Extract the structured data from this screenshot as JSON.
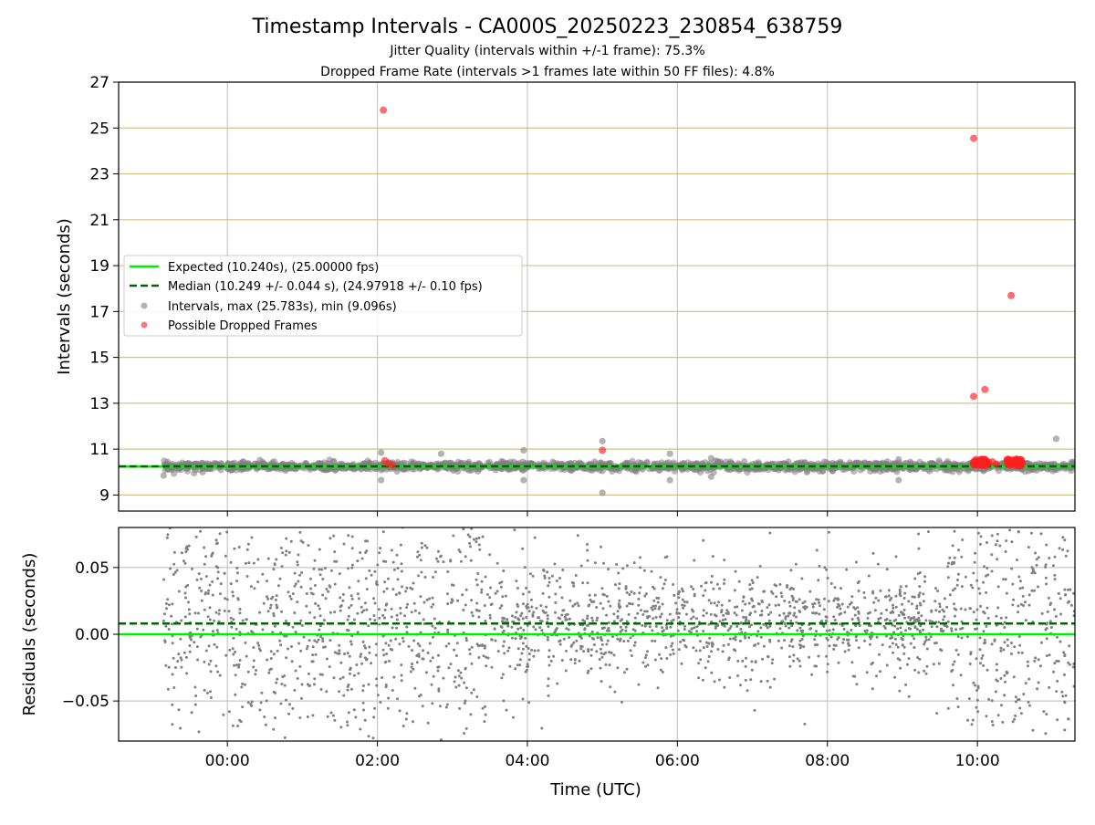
{
  "chart_data": [
    {
      "type": "scatter",
      "title": "Timestamp Intervals - CA000S_20250223_230854_638759",
      "subtitle_lines": [
        "Jitter Quality (intervals within +/-1 frame): 75.3%",
        "Dropped Frame Rate (intervals >1 frames late within 50 FF files): 4.8%"
      ],
      "xlabel": "",
      "ylabel": "Intervals (seconds)",
      "xlim_hours": [
        -1.45,
        11.3
      ],
      "ylim": [
        8.3,
        27
      ],
      "yticks": [
        9,
        11,
        13,
        15,
        17,
        19,
        21,
        23,
        25,
        27
      ],
      "grid": true,
      "legend_position": "center-left",
      "legend": [
        "Expected (10.240s), (25.00000 fps)",
        "Median (10.249 +/- 0.044 s), (24.97918 +/- 0.10 fps)",
        "Intervals, max (25.783s), min (9.096s)",
        "Possible Dropped Frames"
      ],
      "expected": 10.24,
      "median": 10.249,
      "colors": {
        "expected": "#00ee00",
        "median": "#006400",
        "intervals": "#808080",
        "dropped": "#ff2020",
        "hgrid": "#d2c28a",
        "vgrid": "#c8c8c8"
      },
      "dropped_points": [
        {
          "x_hours": 2.08,
          "y": 25.78
        },
        {
          "x_hours": 9.95,
          "y": 24.55
        },
        {
          "x_hours": 10.45,
          "y": 17.7
        },
        {
          "x_hours": 10.1,
          "y": 13.6
        },
        {
          "x_hours": 9.95,
          "y": 13.3
        },
        {
          "x_hours": 5.0,
          "y": 10.95
        },
        {
          "x_hours": 2.1,
          "y": 10.5
        },
        {
          "x_hours": 2.15,
          "y": 10.35
        },
        {
          "x_hours": 2.2,
          "y": 10.3
        },
        {
          "x_hours": 9.98,
          "y": 10.55
        },
        {
          "x_hours": 10.05,
          "y": 10.45
        },
        {
          "x_hours": 10.12,
          "y": 10.4
        },
        {
          "x_hours": 10.2,
          "y": 10.45
        },
        {
          "x_hours": 10.25,
          "y": 10.35
        },
        {
          "x_hours": 10.5,
          "y": 10.4
        },
        {
          "x_hours": 10.55,
          "y": 10.5
        },
        {
          "x_hours": 10.6,
          "y": 10.4
        }
      ],
      "interval_outliers": [
        {
          "x_hours": 2.05,
          "y": 10.85
        },
        {
          "x_hours": 2.05,
          "y": 9.65
        },
        {
          "x_hours": 2.85,
          "y": 10.8
        },
        {
          "x_hours": 3.95,
          "y": 10.95
        },
        {
          "x_hours": 3.95,
          "y": 9.65
        },
        {
          "x_hours": 5.0,
          "y": 11.35
        },
        {
          "x_hours": 5.0,
          "y": 9.1
        },
        {
          "x_hours": 5.9,
          "y": 10.8
        },
        {
          "x_hours": 5.9,
          "y": 9.65
        },
        {
          "x_hours": 6.45,
          "y": 10.6
        },
        {
          "x_hours": 6.45,
          "y": 9.8
        },
        {
          "x_hours": 8.95,
          "y": 10.55
        },
        {
          "x_hours": 8.95,
          "y": 9.65
        },
        {
          "x_hours": 11.05,
          "y": 11.45
        },
        {
          "x_hours": -0.85,
          "y": 9.85
        }
      ],
      "interval_band": {
        "x_start_hours": -0.85,
        "x_end_hours": 11.3,
        "typical_spread": 0.25
      }
    },
    {
      "type": "scatter",
      "xlabel": "Time (UTC)",
      "ylabel": "Residuals (seconds)",
      "xlim_hours": [
        -1.45,
        11.3
      ],
      "ylim": [
        -0.08,
        0.08
      ],
      "yticks": [
        -0.05,
        0.0,
        0.05
      ],
      "ytick_labels": [
        "−0.05",
        "0.00",
        "0.05"
      ],
      "xticks_hours": [
        0,
        2,
        4,
        6,
        8,
        10
      ],
      "xtick_labels": [
        "00:00",
        "02:00",
        "04:00",
        "06:00",
        "08:00",
        "10:00"
      ],
      "grid": true,
      "expected_residual": 0.0,
      "median_residual": 0.008,
      "residual_spread_wide": 0.045,
      "residual_spread_narrow": 0.018,
      "narrow_region_hours": [
        3.5,
        9.6
      ]
    }
  ]
}
